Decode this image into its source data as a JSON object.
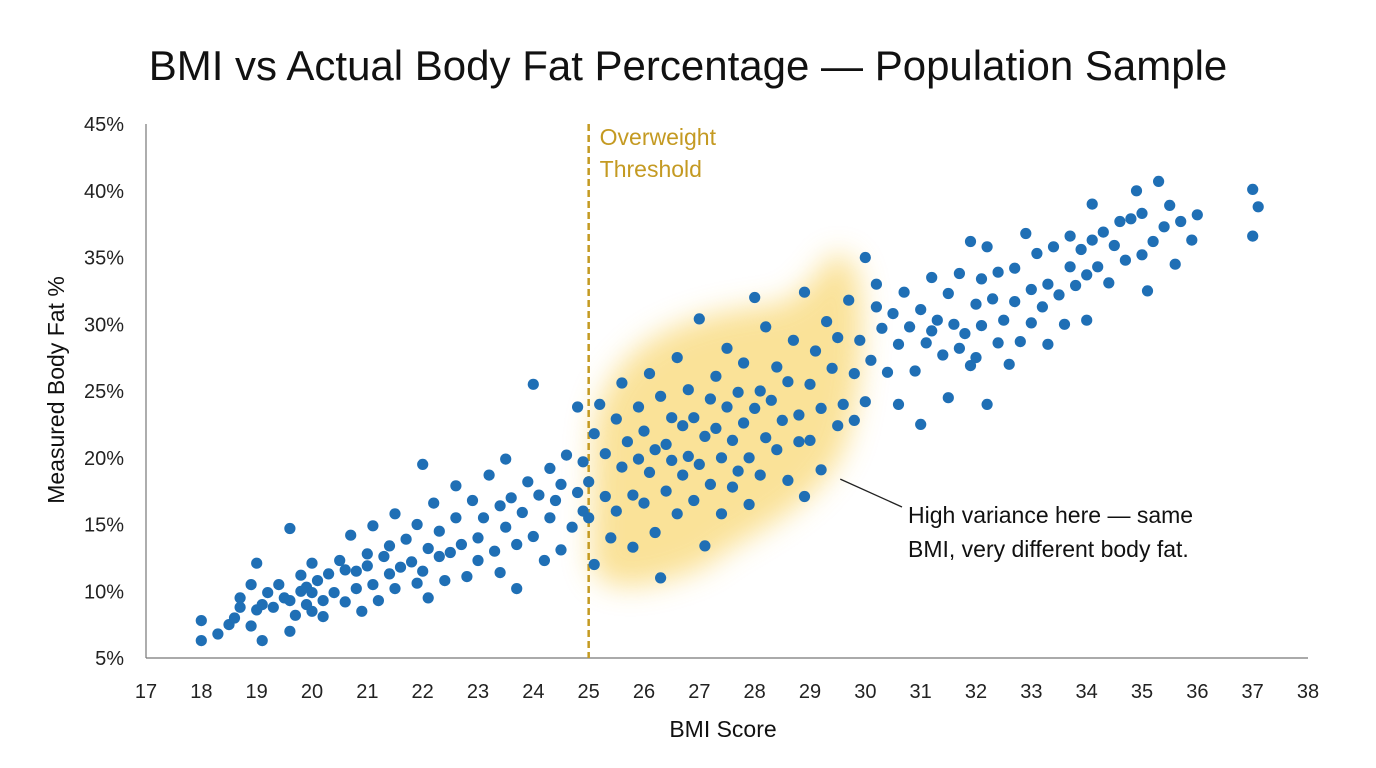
{
  "chart_data": {
    "type": "scatter",
    "title": "BMI vs Actual Body Fat Percentage — Population Sample",
    "xlabel": "BMI Score",
    "ylabel": "Measured Body Fat %",
    "xlim": [
      17,
      38
    ],
    "ylim": [
      5,
      45
    ],
    "x_ticks": [
      17,
      18,
      19,
      20,
      21,
      22,
      23,
      24,
      25,
      26,
      27,
      28,
      29,
      30,
      31,
      32,
      33,
      34,
      35,
      36,
      37,
      38
    ],
    "x_tick_labels": [
      "17",
      "18",
      "19",
      "20",
      "21",
      "22",
      "23",
      "24",
      "25",
      "26",
      "27",
      "28",
      "29",
      "30",
      "31",
      "32",
      "33",
      "34",
      "35",
      "36",
      "37",
      "38"
    ],
    "y_ticks": [
      5,
      10,
      15,
      20,
      25,
      30,
      35,
      40,
      45
    ],
    "y_tick_labels": [
      "5%",
      "10%",
      "15%",
      "20%",
      "25%",
      "30%",
      "35%",
      "40%",
      "45%"
    ],
    "grid": false,
    "point_color": "#1f6fb5",
    "threshold": {
      "x": 25,
      "label_line1": "Overweight",
      "label_line2": "Threshold",
      "color": "#c49a22"
    },
    "highlight_region": {
      "x_range": [
        25,
        30
      ],
      "color": "#f7cf55"
    },
    "annotation": {
      "line1": "High variance here — same",
      "line2": "BMI, very different body fat.",
      "points_to": [
        29.8,
        19
      ]
    },
    "series": [
      {
        "points": [
          [
            18.0,
            6.3
          ],
          [
            18.0,
            7.8
          ],
          [
            18.3,
            6.8
          ],
          [
            18.5,
            7.5
          ],
          [
            18.6,
            8.0
          ],
          [
            18.7,
            9.5
          ],
          [
            18.7,
            8.8
          ],
          [
            18.9,
            10.5
          ],
          [
            18.9,
            7.4
          ],
          [
            19.0,
            8.6
          ],
          [
            19.0,
            12.1
          ],
          [
            19.1,
            9.0
          ],
          [
            19.1,
            6.3
          ],
          [
            19.2,
            9.9
          ],
          [
            19.3,
            8.8
          ],
          [
            19.4,
            10.5
          ],
          [
            19.5,
            9.5
          ],
          [
            19.6,
            9.3
          ],
          [
            19.6,
            7.0
          ],
          [
            19.6,
            14.7
          ],
          [
            19.7,
            8.2
          ],
          [
            19.8,
            10.0
          ],
          [
            19.8,
            11.2
          ],
          [
            19.9,
            9.0
          ],
          [
            19.9,
            10.3
          ],
          [
            20.0,
            8.5
          ],
          [
            20.0,
            9.9
          ],
          [
            20.0,
            12.1
          ],
          [
            20.1,
            10.8
          ],
          [
            20.2,
            9.3
          ],
          [
            20.2,
            8.1
          ],
          [
            20.3,
            11.3
          ],
          [
            20.4,
            9.9
          ],
          [
            20.5,
            12.3
          ],
          [
            20.6,
            9.2
          ],
          [
            20.6,
            11.6
          ],
          [
            20.7,
            14.2
          ],
          [
            20.8,
            10.2
          ],
          [
            20.8,
            11.5
          ],
          [
            20.9,
            8.5
          ],
          [
            21.0,
            11.9
          ],
          [
            21.0,
            12.8
          ],
          [
            21.1,
            10.5
          ],
          [
            21.1,
            14.9
          ],
          [
            21.2,
            9.3
          ],
          [
            21.3,
            12.6
          ],
          [
            21.4,
            11.3
          ],
          [
            21.4,
            13.4
          ],
          [
            21.5,
            10.2
          ],
          [
            21.5,
            15.8
          ],
          [
            21.6,
            11.8
          ],
          [
            21.7,
            13.9
          ],
          [
            21.8,
            12.2
          ],
          [
            21.9,
            10.6
          ],
          [
            21.9,
            15.0
          ],
          [
            22.0,
            11.5
          ],
          [
            22.0,
            19.5
          ],
          [
            22.1,
            13.2
          ],
          [
            22.1,
            9.5
          ],
          [
            22.2,
            16.6
          ],
          [
            22.3,
            12.6
          ],
          [
            22.3,
            14.5
          ],
          [
            22.4,
            10.8
          ],
          [
            22.5,
            12.9
          ],
          [
            22.6,
            15.5
          ],
          [
            22.6,
            17.9
          ],
          [
            22.7,
            13.5
          ],
          [
            22.8,
            11.1
          ],
          [
            22.9,
            16.8
          ],
          [
            23.0,
            14.0
          ],
          [
            23.0,
            12.3
          ],
          [
            23.1,
            15.5
          ],
          [
            23.2,
            18.7
          ],
          [
            23.3,
            13.0
          ],
          [
            23.4,
            16.4
          ],
          [
            23.4,
            11.4
          ],
          [
            23.5,
            14.8
          ],
          [
            23.5,
            19.9
          ],
          [
            23.6,
            17.0
          ],
          [
            23.7,
            13.5
          ],
          [
            23.7,
            10.2
          ],
          [
            23.8,
            15.9
          ],
          [
            23.9,
            18.2
          ],
          [
            24.0,
            14.1
          ],
          [
            24.0,
            25.5
          ],
          [
            24.1,
            17.2
          ],
          [
            24.2,
            12.3
          ],
          [
            24.3,
            19.2
          ],
          [
            24.3,
            15.5
          ],
          [
            24.4,
            16.8
          ],
          [
            24.5,
            18.0
          ],
          [
            24.5,
            13.1
          ],
          [
            24.6,
            20.2
          ],
          [
            24.7,
            14.8
          ],
          [
            24.8,
            17.4
          ],
          [
            24.8,
            23.8
          ],
          [
            24.9,
            16.0
          ],
          [
            24.9,
            19.7
          ],
          [
            25.0,
            15.5
          ],
          [
            25.0,
            18.2
          ],
          [
            25.1,
            21.8
          ],
          [
            25.1,
            12.0
          ],
          [
            25.2,
            24.0
          ],
          [
            25.3,
            17.1
          ],
          [
            25.3,
            20.3
          ],
          [
            25.4,
            14.0
          ],
          [
            25.5,
            22.9
          ],
          [
            25.5,
            16.0
          ],
          [
            25.6,
            19.3
          ],
          [
            25.6,
            25.6
          ],
          [
            25.7,
            21.2
          ],
          [
            25.8,
            17.2
          ],
          [
            25.8,
            13.3
          ],
          [
            25.9,
            23.8
          ],
          [
            25.9,
            19.9
          ],
          [
            26.0,
            16.6
          ],
          [
            26.0,
            22.0
          ],
          [
            26.1,
            26.3
          ],
          [
            26.1,
            18.9
          ],
          [
            26.2,
            20.6
          ],
          [
            26.2,
            14.4
          ],
          [
            26.3,
            24.6
          ],
          [
            26.3,
            11.0
          ],
          [
            26.4,
            21.0
          ],
          [
            26.4,
            17.5
          ],
          [
            26.5,
            23.0
          ],
          [
            26.5,
            19.8
          ],
          [
            26.6,
            15.8
          ],
          [
            26.6,
            27.5
          ],
          [
            26.7,
            22.4
          ],
          [
            26.7,
            18.7
          ],
          [
            26.8,
            25.1
          ],
          [
            26.8,
            20.1
          ],
          [
            26.9,
            16.8
          ],
          [
            26.9,
            23.0
          ],
          [
            27.0,
            19.5
          ],
          [
            27.0,
            30.4
          ],
          [
            27.1,
            21.6
          ],
          [
            27.1,
            13.4
          ],
          [
            27.2,
            24.4
          ],
          [
            27.2,
            18.0
          ],
          [
            27.3,
            26.1
          ],
          [
            27.3,
            22.2
          ],
          [
            27.4,
            20.0
          ],
          [
            27.4,
            15.8
          ],
          [
            27.5,
            23.8
          ],
          [
            27.5,
            28.2
          ],
          [
            27.6,
            21.3
          ],
          [
            27.6,
            17.8
          ],
          [
            27.7,
            24.9
          ],
          [
            27.7,
            19.0
          ],
          [
            27.8,
            27.1
          ],
          [
            27.8,
            22.6
          ],
          [
            27.9,
            20.0
          ],
          [
            27.9,
            16.5
          ],
          [
            28.0,
            23.7
          ],
          [
            28.0,
            32.0
          ],
          [
            28.1,
            25.0
          ],
          [
            28.1,
            18.7
          ],
          [
            28.2,
            21.5
          ],
          [
            28.2,
            29.8
          ],
          [
            28.3,
            24.3
          ],
          [
            28.4,
            20.6
          ],
          [
            28.4,
            26.8
          ],
          [
            28.5,
            22.8
          ],
          [
            28.6,
            18.3
          ],
          [
            28.6,
            25.7
          ],
          [
            28.7,
            28.8
          ],
          [
            28.8,
            23.2
          ],
          [
            28.8,
            21.2
          ],
          [
            28.9,
            32.4
          ],
          [
            28.9,
            17.1
          ],
          [
            29.0,
            25.5
          ],
          [
            29.0,
            21.3
          ],
          [
            29.1,
            28.0
          ],
          [
            29.2,
            23.7
          ],
          [
            29.2,
            19.1
          ],
          [
            29.3,
            30.2
          ],
          [
            29.4,
            26.7
          ],
          [
            29.5,
            22.4
          ],
          [
            29.5,
            29.0
          ],
          [
            29.6,
            24.0
          ],
          [
            29.7,
            31.8
          ],
          [
            29.8,
            26.3
          ],
          [
            29.8,
            22.8
          ],
          [
            29.9,
            28.8
          ],
          [
            30.0,
            35.0
          ],
          [
            30.0,
            24.2
          ],
          [
            30.1,
            27.3
          ],
          [
            30.2,
            31.3
          ],
          [
            30.2,
            33.0
          ],
          [
            30.3,
            29.7
          ],
          [
            30.4,
            26.4
          ],
          [
            30.5,
            30.8
          ],
          [
            30.6,
            28.5
          ],
          [
            30.6,
            24.0
          ],
          [
            30.7,
            32.4
          ],
          [
            30.8,
            29.8
          ],
          [
            30.9,
            26.5
          ],
          [
            31.0,
            31.1
          ],
          [
            31.0,
            22.5
          ],
          [
            31.1,
            28.6
          ],
          [
            31.2,
            33.5
          ],
          [
            31.2,
            29.5
          ],
          [
            31.3,
            30.3
          ],
          [
            31.4,
            27.7
          ],
          [
            31.5,
            32.3
          ],
          [
            31.5,
            24.5
          ],
          [
            31.6,
            30.0
          ],
          [
            31.7,
            33.8
          ],
          [
            31.7,
            28.2
          ],
          [
            31.8,
            29.3
          ],
          [
            31.9,
            36.2
          ],
          [
            31.9,
            26.9
          ],
          [
            32.0,
            31.5
          ],
          [
            32.0,
            27.5
          ],
          [
            32.1,
            33.4
          ],
          [
            32.1,
            29.9
          ],
          [
            32.2,
            35.8
          ],
          [
            32.2,
            24.0
          ],
          [
            32.3,
            31.9
          ],
          [
            32.4,
            28.6
          ],
          [
            32.4,
            33.9
          ],
          [
            32.5,
            30.3
          ],
          [
            32.6,
            27.0
          ],
          [
            32.7,
            34.2
          ],
          [
            32.7,
            31.7
          ],
          [
            32.8,
            28.7
          ],
          [
            32.9,
            36.8
          ],
          [
            33.0,
            32.6
          ],
          [
            33.0,
            30.1
          ],
          [
            33.1,
            35.3
          ],
          [
            33.2,
            31.3
          ],
          [
            33.3,
            28.5
          ],
          [
            33.3,
            33.0
          ],
          [
            33.4,
            35.8
          ],
          [
            33.5,
            32.2
          ],
          [
            33.6,
            30.0
          ],
          [
            33.7,
            34.3
          ],
          [
            33.7,
            36.6
          ],
          [
            33.8,
            32.9
          ],
          [
            33.9,
            35.6
          ],
          [
            34.0,
            33.7
          ],
          [
            34.0,
            30.3
          ],
          [
            34.1,
            39.0
          ],
          [
            34.1,
            36.3
          ],
          [
            34.2,
            34.3
          ],
          [
            34.3,
            36.9
          ],
          [
            34.4,
            33.1
          ],
          [
            34.5,
            35.9
          ],
          [
            34.6,
            37.7
          ],
          [
            34.7,
            34.8
          ],
          [
            34.8,
            37.9
          ],
          [
            34.9,
            40.0
          ],
          [
            35.0,
            35.2
          ],
          [
            35.0,
            38.3
          ],
          [
            35.1,
            32.5
          ],
          [
            35.2,
            36.2
          ],
          [
            35.3,
            40.7
          ],
          [
            35.4,
            37.3
          ],
          [
            35.5,
            38.9
          ],
          [
            35.6,
            34.5
          ],
          [
            35.7,
            37.7
          ],
          [
            35.9,
            36.3
          ],
          [
            36.0,
            38.2
          ],
          [
            37.0,
            40.1
          ],
          [
            37.0,
            36.6
          ],
          [
            37.1,
            38.8
          ]
        ]
      }
    ]
  }
}
